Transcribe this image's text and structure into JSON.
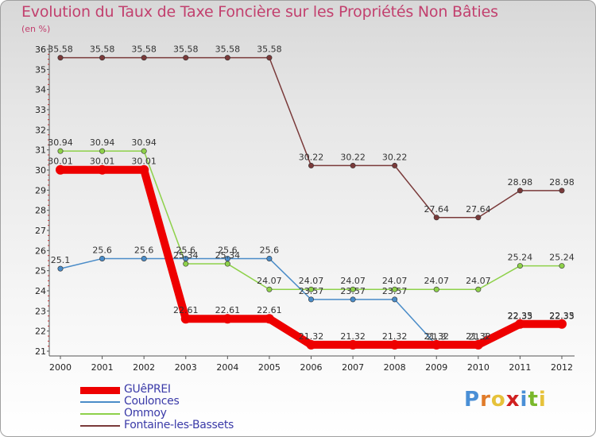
{
  "title": "Evolution du Taux de Taxe Foncière sur les Propriétés Non Bâties",
  "unit_label": "(en %)",
  "brand": {
    "letters": [
      "P",
      "r",
      "o",
      "x",
      "i",
      "t",
      "i"
    ],
    "colors": [
      "#4a8fd6",
      "#e07b2a",
      "#e6c23a",
      "#d02020",
      "#4a8fd6",
      "#7ab82c",
      "#e6c23a"
    ]
  },
  "chart_data": {
    "type": "line",
    "title": "Evolution du Taux de Taxe Foncière sur les Propriétés Non Bâties",
    "ylabel": "(en %)",
    "xlabel": "",
    "ylim": [
      21,
      36
    ],
    "yticks": [
      21,
      22,
      23,
      24,
      25,
      26,
      27,
      28,
      29,
      30,
      31,
      32,
      33,
      34,
      35,
      36
    ],
    "x": [
      "2000",
      "2001",
      "2002",
      "2003",
      "2004",
      "2005",
      "2006",
      "2007",
      "2008",
      "2009",
      "2010",
      "2011",
      "2012"
    ],
    "series": [
      {
        "name": "GUêPREI",
        "color": "#ee0000",
        "values": [
          30.01,
          30.01,
          30.01,
          22.61,
          22.61,
          22.61,
          21.32,
          21.32,
          21.32,
          21.32,
          21.32,
          22.35,
          22.35
        ],
        "labels": [
          "30.01",
          "30.01",
          "30.01",
          "22.61",
          "22.61",
          "22.61",
          "21.32",
          "21.32",
          "21.32",
          "21.32",
          "21.32",
          "22.35",
          "22.35"
        ]
      },
      {
        "name": "Coulonces",
        "color": "#4a8cc8",
        "values": [
          25.1,
          25.6,
          25.6,
          25.6,
          25.6,
          25.6,
          23.57,
          23.57,
          23.57,
          21.3,
          21.3,
          22.33,
          22.33
        ],
        "labels": [
          "25.1",
          "25.6",
          "25.6",
          "25.6",
          "25.6",
          "25.6",
          "23.57",
          "23.57",
          "23.57",
          "21.3",
          "21.3",
          "22.33",
          "22.33"
        ]
      },
      {
        "name": "Ommoy",
        "color": "#8ed14a",
        "values": [
          30.94,
          30.94,
          30.94,
          25.34,
          25.34,
          24.07,
          24.07,
          24.07,
          24.07,
          24.07,
          24.07,
          25.24,
          25.24
        ],
        "labels": [
          "30.94",
          "30.94",
          "30.94",
          "25.34",
          "25.34",
          "24.07",
          "24.07",
          "24.07",
          "24.07",
          "24.07",
          "24.07",
          "25.24",
          "25.24"
        ]
      },
      {
        "name": "Fontaine-les-Bassets",
        "color": "#7a3a3a",
        "values": [
          35.58,
          35.58,
          35.58,
          35.58,
          35.58,
          35.58,
          30.22,
          30.22,
          30.22,
          27.64,
          27.64,
          28.98,
          28.98
        ],
        "labels": [
          "35.58",
          "35.58",
          "35.58",
          "35.58",
          "35.58",
          "35.58",
          "30.22",
          "30.22",
          "30.22",
          "27.64",
          "27.64",
          "28.98",
          "28.98"
        ]
      }
    ],
    "legend_position": "bottom-left",
    "grid": false
  }
}
